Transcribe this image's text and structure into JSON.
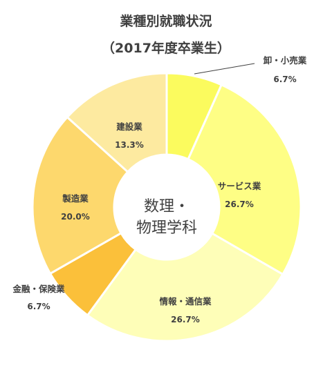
{
  "chart_data": {
    "type": "pie",
    "title_line1": "業種別就職状況",
    "title_line2": "（2017年度卒業生）",
    "center_label_line1": "数理・",
    "center_label_line2": "物理学科",
    "slices": [
      {
        "label": "卸・小売業",
        "value_label": "6.7%",
        "value": 6.7,
        "color": "#fbfb5e"
      },
      {
        "label": "サービス業",
        "value_label": "26.7%",
        "value": 26.7,
        "color": "#fefe85"
      },
      {
        "label": "情報・通信業",
        "value_label": "26.7%",
        "value": 26.7,
        "color": "#fefeb8"
      },
      {
        "label": "金融・保険業",
        "value_label": "6.7%",
        "value": 6.7,
        "color": "#fbc03a"
      },
      {
        "label": "製造業",
        "value_label": "20.0%",
        "value": 20.0,
        "color": "#fdd86d"
      },
      {
        "label": "建設業",
        "value_label": "13.3%",
        "value": 13.3,
        "color": "#fdeaa0"
      }
    ]
  }
}
